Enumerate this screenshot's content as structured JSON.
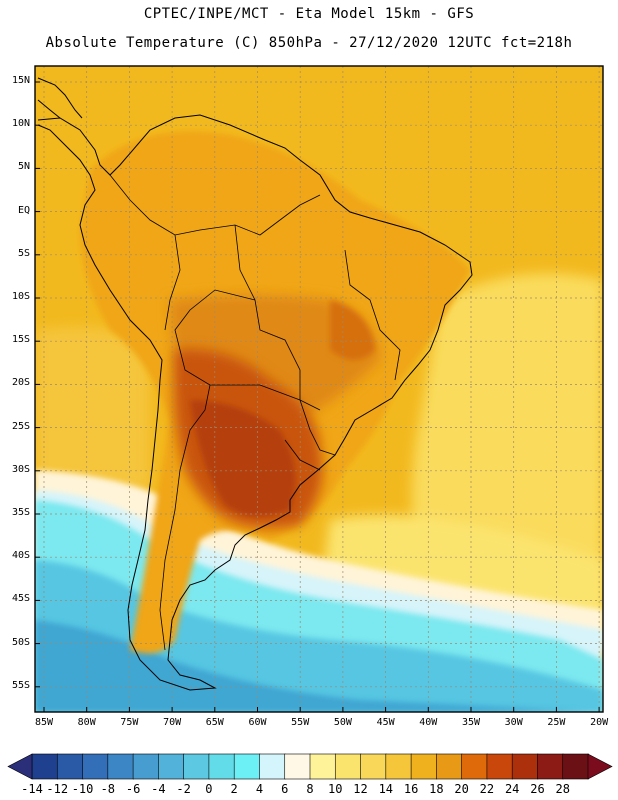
{
  "title_line1": "CPTEC/INPE/MCT -  Eta Model 15km - GFS",
  "title_line2": "Absolute Temperature (C) 850hPa - 27/12/2020 12UTC fct=218h",
  "lat_labels": [
    "15N",
    "10N",
    "5N",
    "EQ",
    "5S",
    "10S",
    "15S",
    "20S",
    "25S",
    "30S",
    "35S",
    "40S",
    "45S",
    "50S",
    "55S"
  ],
  "lon_labels": [
    "85W",
    "80W",
    "75W",
    "70W",
    "65W",
    "60W",
    "55W",
    "50W",
    "45W",
    "40W",
    "35W",
    "30W",
    "25W",
    "20W"
  ],
  "colorbar": {
    "labels": [
      "-14",
      "-12",
      "-10",
      "-8",
      "-6",
      "-4",
      "-2",
      "0",
      "2",
      "4",
      "6",
      "8",
      "10",
      "12",
      "14",
      "16",
      "18",
      "20",
      "22",
      "24",
      "26",
      "28"
    ],
    "colors": [
      "#1f3f8f",
      "#2a5aa6",
      "#336fb8",
      "#3d86c6",
      "#489dd0",
      "#52b2d9",
      "#5cc8e2",
      "#63dcea",
      "#6cf0f5",
      "#d4f5fb",
      "#fff8e6",
      "#fff39a",
      "#fbe46e",
      "#f9d758",
      "#f5c53a",
      "#f0b11f",
      "#e89a16",
      "#df6a0a",
      "#c9470b",
      "#ad300d",
      "#8b1b14",
      "#6b1014"
    ],
    "low_arrow_color": "#2b2f7a",
    "high_arrow_color": "#7a0c1e"
  },
  "field_colors": {
    "ocean_warm": "#f2b91e",
    "ocean_mid": "#fadb5c",
    "land": "#f0a617",
    "land_warm": "#e08912",
    "hot": "#c9540f",
    "hottest": "#b5400c",
    "cold1": "#7be8ef",
    "cold2": "#56c6e2",
    "cold3": "#3fa6d2",
    "pale": "#fff4d8",
    "pale_blue": "#d6f4fa"
  }
}
